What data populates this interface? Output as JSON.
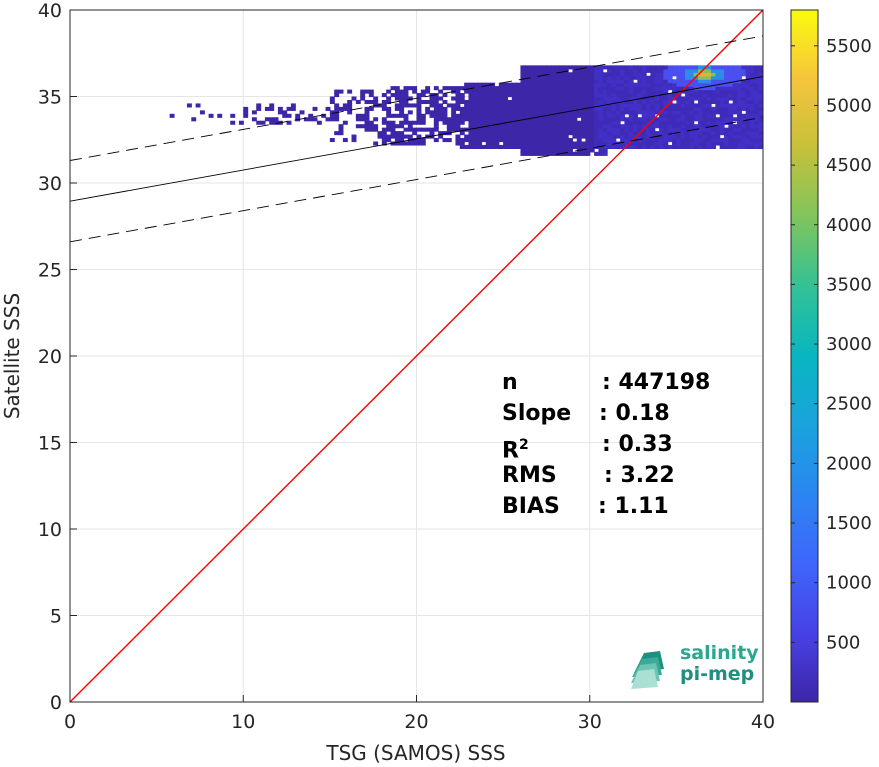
{
  "chart_data": {
    "type": "heatmap",
    "title": "",
    "xlabel": "TSG (SAMOS) SSS",
    "ylabel": "Satellite SSS",
    "xlim": [
      0,
      40
    ],
    "ylim": [
      0,
      40
    ],
    "xticks": [
      "0",
      "10",
      "20",
      "30",
      "40"
    ],
    "yticks": [
      "0",
      "5",
      "10",
      "15",
      "20",
      "25",
      "30",
      "35",
      "40"
    ],
    "grid": true,
    "density": {
      "description": "2D histogram of match-up counts",
      "x_range": [
        5,
        40
      ],
      "y_range": [
        31,
        37
      ],
      "peak": {
        "x": 36.5,
        "y": 36.2
      },
      "colormap": "parula",
      "colorbar_ticks": [
        "500",
        "1000",
        "1500",
        "2000",
        "2500",
        "3000",
        "3500",
        "4000",
        "4500",
        "5000",
        "5500"
      ],
      "colorbar_range": [
        0,
        5800
      ]
    },
    "lines": [
      {
        "kind": "one-to-one",
        "color": "#ff0000",
        "style": "solid",
        "points": [
          [
            0,
            0
          ],
          [
            40,
            40
          ]
        ]
      },
      {
        "kind": "regression",
        "color": "#000000",
        "style": "solid",
        "points": [
          [
            0,
            28.95
          ],
          [
            40,
            36.15
          ]
        ]
      },
      {
        "kind": "regression-upper",
        "color": "#000000",
        "style": "dashed",
        "points": [
          [
            0,
            31.3
          ],
          [
            40,
            38.5
          ]
        ]
      },
      {
        "kind": "regression-lower",
        "color": "#000000",
        "style": "dashed",
        "points": [
          [
            0,
            26.6
          ],
          [
            40,
            33.8
          ]
        ]
      }
    ],
    "stats": [
      {
        "name": "n",
        "value": ": 447198"
      },
      {
        "name": "Slope",
        "value": ": 0.18"
      },
      {
        "name": "R",
        "sup": "2",
        "value": ": 0.33"
      },
      {
        "name": "RMS",
        "value": ": 3.22"
      },
      {
        "name": "BIAS",
        "value": ": 1.11"
      }
    ]
  },
  "logo": {
    "line1": "salinity",
    "line2": "pi-mep"
  }
}
